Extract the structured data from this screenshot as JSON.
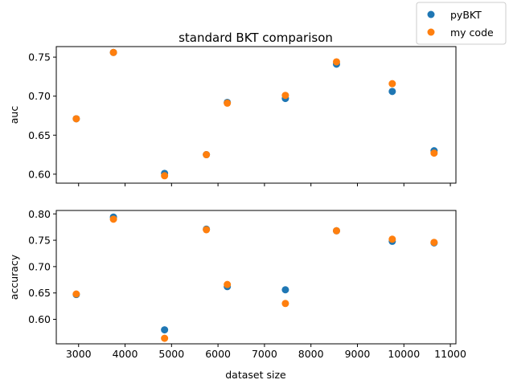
{
  "chart_data": [
    {
      "type": "scatter",
      "title": "standard BKT comparison",
      "xlabel": "",
      "ylabel": "auc",
      "xlim": [
        2520,
        11120
      ],
      "ylim": [
        0.5885,
        0.7635
      ],
      "xticks": [
        3000,
        4000,
        5000,
        6000,
        7000,
        8000,
        9000,
        10000,
        11000
      ],
      "xtick_labels": [],
      "yticks": [
        0.6,
        0.65,
        0.7,
        0.75
      ],
      "ytick_labels": [
        "0.60",
        "0.65",
        "0.70",
        "0.75"
      ],
      "grid": false,
      "series": [
        {
          "name": "pyBKT",
          "color": "#1f77b4",
          "x": [
            2950,
            3750,
            4850,
            5750,
            6200,
            7450,
            8550,
            9750,
            10650
          ],
          "y": [
            0.671,
            0.756,
            0.601,
            0.625,
            0.692,
            0.697,
            0.741,
            0.706,
            0.63
          ]
        },
        {
          "name": "my code",
          "color": "#ff7f0e",
          "x": [
            2950,
            3750,
            4850,
            5750,
            6200,
            7450,
            8550,
            9750,
            10650
          ],
          "y": [
            0.671,
            0.756,
            0.598,
            0.625,
            0.691,
            0.701,
            0.744,
            0.716,
            0.627
          ]
        }
      ]
    },
    {
      "type": "scatter",
      "title": "",
      "xlabel": "dataset size",
      "ylabel": "accuracy",
      "xlim": [
        2520,
        11120
      ],
      "ylim": [
        0.5535,
        0.8065
      ],
      "xticks": [
        3000,
        4000,
        5000,
        6000,
        7000,
        8000,
        9000,
        10000,
        11000
      ],
      "xtick_labels": [
        "3000",
        "4000",
        "5000",
        "6000",
        "7000",
        "8000",
        "9000",
        "10000",
        "11000"
      ],
      "yticks": [
        0.6,
        0.65,
        0.7,
        0.75,
        0.8
      ],
      "ytick_labels": [
        "0.60",
        "0.65",
        "0.70",
        "0.75",
        "0.80"
      ],
      "grid": false,
      "series": [
        {
          "name": "pyBKT",
          "color": "#1f77b4",
          "x": [
            2950,
            3750,
            4850,
            5750,
            6200,
            7450,
            8550,
            9750,
            10650
          ],
          "y": [
            0.647,
            0.794,
            0.58,
            0.771,
            0.662,
            0.656,
            0.768,
            0.748,
            0.745
          ]
        },
        {
          "name": "my code",
          "color": "#ff7f0e",
          "x": [
            2950,
            3750,
            4850,
            5750,
            6200,
            7450,
            8550,
            9750,
            10650
          ],
          "y": [
            0.648,
            0.79,
            0.564,
            0.77,
            0.666,
            0.63,
            0.768,
            0.752,
            0.746
          ]
        }
      ]
    }
  ],
  "legend": {
    "placement": "top-right",
    "entries": [
      {
        "label": "pyBKT",
        "color": "#1f77b4"
      },
      {
        "label": "my code",
        "color": "#ff7f0e"
      }
    ]
  }
}
